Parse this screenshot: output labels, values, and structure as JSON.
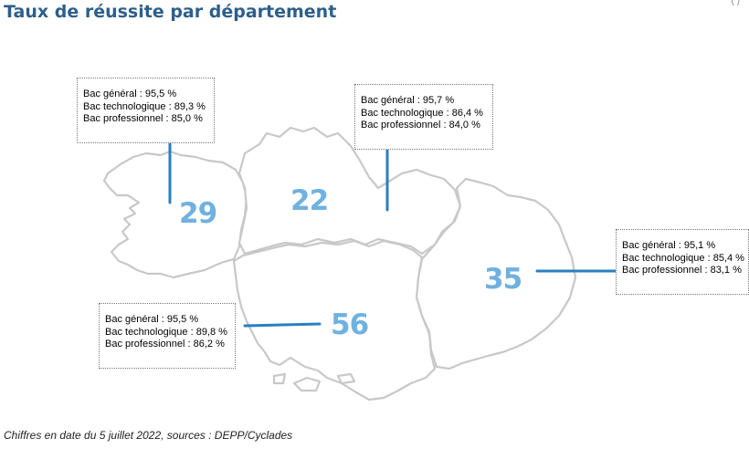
{
  "title": "Taux de réussite par département",
  "corner_mark": "( )",
  "colors": {
    "title": "#2d5f8b",
    "dept_number": "#6fb1e0",
    "leader_line": "#2a7fc1",
    "border": "#c8c8c8"
  },
  "departments": [
    {
      "code": "29",
      "stats": [
        {
          "label": "Bac général :",
          "value": "95,5 %"
        },
        {
          "label": "Bac technologique :",
          "value": "89,3 %"
        },
        {
          "label": "Bac professionnel :",
          "value": "85,0 %"
        }
      ]
    },
    {
      "code": "22",
      "stats": [
        {
          "label": "Bac général :",
          "value": "95,7 %"
        },
        {
          "label": "Bac technologique :",
          "value": "86,4 %"
        },
        {
          "label": "Bac professionnel :",
          "value": "84,0 %"
        }
      ]
    },
    {
      "code": "35",
      "stats": [
        {
          "label": "Bac général :",
          "value": "95,1 %"
        },
        {
          "label": "Bac technologique :",
          "value": "85,4 %"
        },
        {
          "label": "Bac professionnel :",
          "value": "83,1 %"
        }
      ]
    },
    {
      "code": "56",
      "stats": [
        {
          "label": "Bac général :",
          "value": "95,5 %"
        },
        {
          "label": "Bac technologique :",
          "value": "89,8 %"
        },
        {
          "label": "Bac professionnel :",
          "value": "86,2 %"
        }
      ]
    }
  ],
  "source": "Chiffres en date du 5 juillet 2022, sources : DEPP/Cyclades"
}
